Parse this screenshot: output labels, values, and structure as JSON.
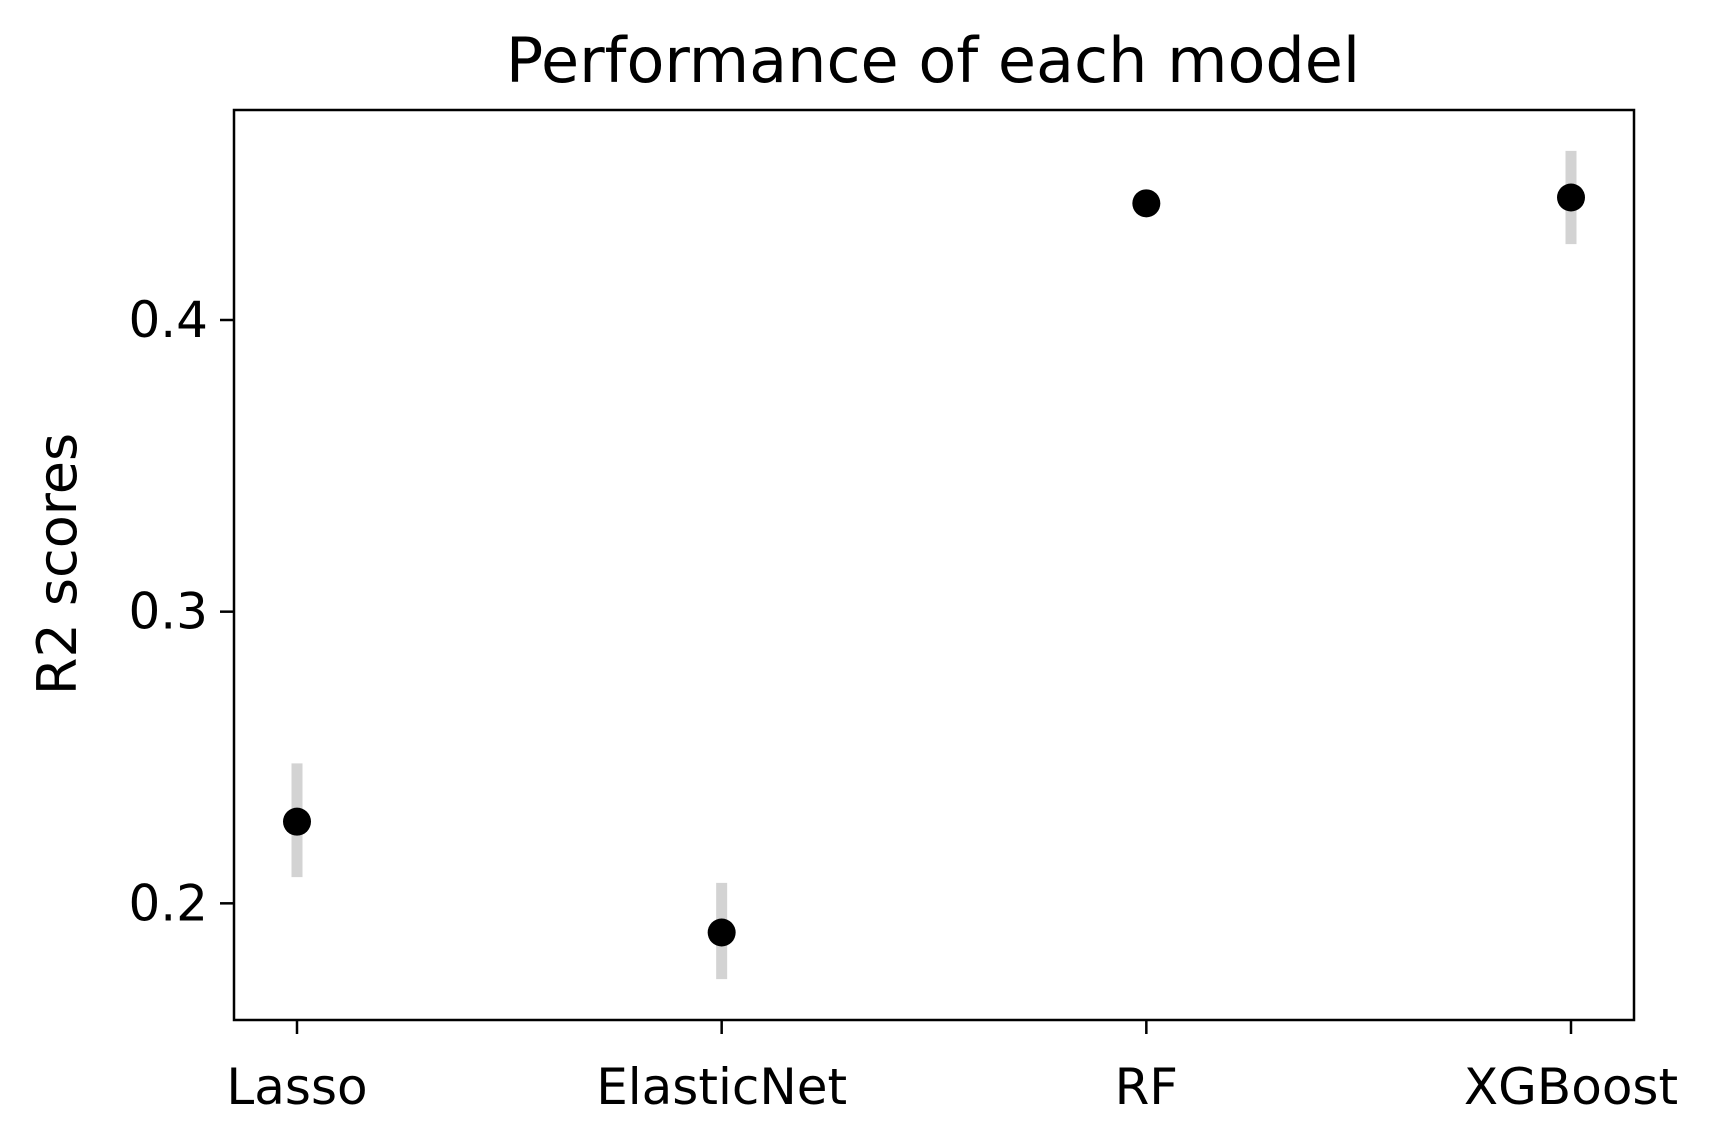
{
  "chart_data": {
    "type": "scatter",
    "title": "Performance of each model",
    "xlabel": "",
    "ylabel": "R2 scores",
    "categories": [
      "Lasso",
      "ElasticNet",
      "RF",
      "XGBoost"
    ],
    "values": [
      0.228,
      0.19,
      0.44,
      0.442
    ],
    "error_ranges": [
      [
        0.209,
        0.248
      ],
      [
        0.174,
        0.207
      ],
      [
        0.44,
        0.44
      ],
      [
        0.426,
        0.458
      ]
    ],
    "yticks": [
      "0.2",
      "0.3",
      "0.4"
    ],
    "ylim": [
      0.16,
      0.472
    ],
    "grid": false,
    "legend": "none",
    "colors": {
      "point": "#000000",
      "error_bar": "#d3d3d3",
      "axes": "#000000"
    }
  }
}
